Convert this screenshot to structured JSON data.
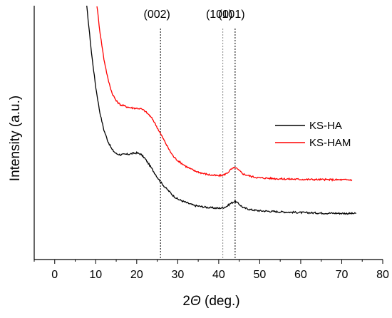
{
  "chart_data": {
    "type": "line",
    "xlabel_prefix": "2",
    "xlabel_symbol": "Θ",
    "xlabel_suffix": " (deg.)",
    "ylabel": "Intensity (a.u.)",
    "xlim": [
      -5,
      80
    ],
    "ylim": [
      0,
      100
    ],
    "x_ticks": [
      0,
      10,
      20,
      30,
      40,
      50,
      60,
      70,
      80
    ],
    "y_ticks_labeled": false,
    "grid": false,
    "legend_position": "right",
    "reference_lines": [
      {
        "x": 25.8,
        "label": "(002)",
        "color": "#000000"
      },
      {
        "x": 41.0,
        "label": "(100)",
        "color": "#888888"
      },
      {
        "x": 44.0,
        "label": "(101)",
        "color": "#000000"
      }
    ],
    "series": [
      {
        "name": "KS-HA",
        "color": "#000000",
        "x": [
          7.8,
          8.5,
          9.0,
          10.0,
          11.0,
          12.0,
          13.0,
          14.0,
          15.0,
          16.0,
          17.0,
          18.0,
          19.0,
          20.0,
          21.0,
          22.0,
          23.0,
          24.0,
          25.0,
          26.0,
          27.0,
          28.0,
          29.0,
          30.0,
          32.0,
          34.0,
          36.0,
          38.0,
          40.0,
          41.0,
          42.0,
          43.0,
          44.0,
          45.0,
          46.0,
          48.0,
          50.0,
          55.0,
          60.0,
          65.0,
          70.0,
          73.5
        ],
        "y": [
          100,
          89,
          81,
          68,
          58,
          51,
          46.5,
          43.3,
          41.7,
          41.3,
          41.4,
          41.5,
          41.8,
          42.0,
          41.5,
          39.8,
          37.5,
          35.0,
          32.5,
          30.2,
          28.3,
          26.7,
          25.0,
          23.8,
          22.5,
          21.3,
          20.8,
          20.4,
          20.2,
          20.4,
          21.0,
          22.2,
          23.0,
          21.8,
          20.4,
          19.6,
          19.2,
          18.8,
          18.5,
          18.3,
          18.2,
          18.1
        ]
      },
      {
        "name": "KS-HAM",
        "color": "#ff0000",
        "x": [
          10.3,
          11.0,
          12.0,
          13.0,
          14.0,
          15.0,
          16.0,
          17.0,
          18.0,
          19.0,
          20.0,
          21.0,
          22.0,
          23.0,
          24.0,
          25.0,
          26.0,
          27.0,
          28.0,
          29.0,
          30.0,
          32.0,
          34.0,
          36.0,
          38.0,
          40.0,
          41.0,
          42.0,
          43.0,
          44.0,
          45.0,
          46.0,
          48.0,
          50.0,
          55.0,
          60.0,
          65.0,
          70.0,
          72.5
        ],
        "y": [
          100,
          90,
          79,
          71,
          65.5,
          62.5,
          61.0,
          60.5,
          60.0,
          59.7,
          59.6,
          59.4,
          58.5,
          57.0,
          55.0,
          52.0,
          49.0,
          46.0,
          43.0,
          40.5,
          39.0,
          36.7,
          35.0,
          34.0,
          33.3,
          33.0,
          33.2,
          34.0,
          35.5,
          36.3,
          35.0,
          33.7,
          32.7,
          32.2,
          31.8,
          31.6,
          31.5,
          31.4,
          31.4
        ]
      }
    ]
  }
}
